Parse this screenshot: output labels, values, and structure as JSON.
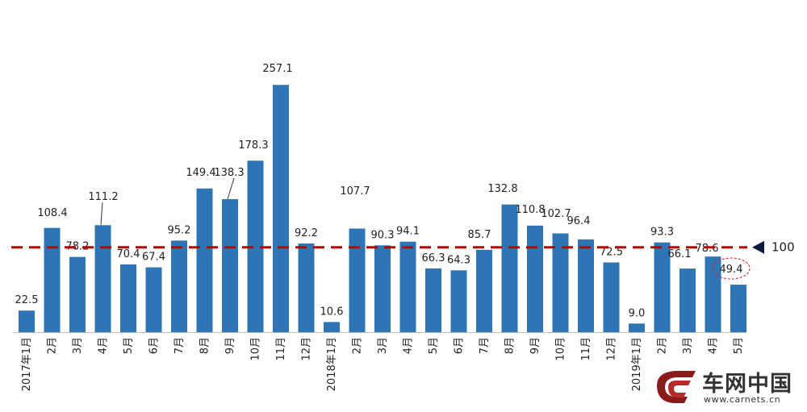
{
  "chart_data": {
    "type": "bar",
    "categories": [
      "2017年1月",
      "2月",
      "3月",
      "4月",
      "5月",
      "6月",
      "7月",
      "8月",
      "9月",
      "10月",
      "11月",
      "12月",
      "2018年1月",
      "2月",
      "3月",
      "4月",
      "5月",
      "6月",
      "7月",
      "8月",
      "9月",
      "10月",
      "11月",
      "12月",
      "2019年1月",
      "2月",
      "3月",
      "4月",
      "5月"
    ],
    "values": [
      22.5,
      108.4,
      78.2,
      111.2,
      70.4,
      67.4,
      95.2,
      149.4,
      138.3,
      178.3,
      257.1,
      92.2,
      10.6,
      107.7,
      90.3,
      94.1,
      66.3,
      64.3,
      85.7,
      132.8,
      110.8,
      102.7,
      96.4,
      72.5,
      9.0,
      93.3,
      66.1,
      78.6,
      49.4
    ],
    "value_labels": [
      "22.5",
      "108.4",
      "78.2",
      "111.2",
      "70.4",
      "67.4",
      "95.2",
      "149.4",
      "138.3",
      "178.3",
      "257.1",
      "92.2",
      "10.6",
      "107.7",
      "90.3",
      "94.1",
      "66.3",
      "64.3",
      "85.7",
      "132.8",
      "110.8",
      "102.7",
      "96.4",
      "72.5",
      "9.0",
      "93.3",
      "66.1",
      "78.6",
      "49.4"
    ],
    "ylim": [
      0,
      300
    ],
    "reference_line": {
      "value": 100,
      "label": "100",
      "color": "#c00000",
      "style": "dashed"
    },
    "highlighted_label_index": 28,
    "bar_color": "#2e75b6",
    "grid": false,
    "legend": "none"
  },
  "watermark": {
    "name_cn": "车网中国",
    "url": "www.carnets.cn"
  }
}
